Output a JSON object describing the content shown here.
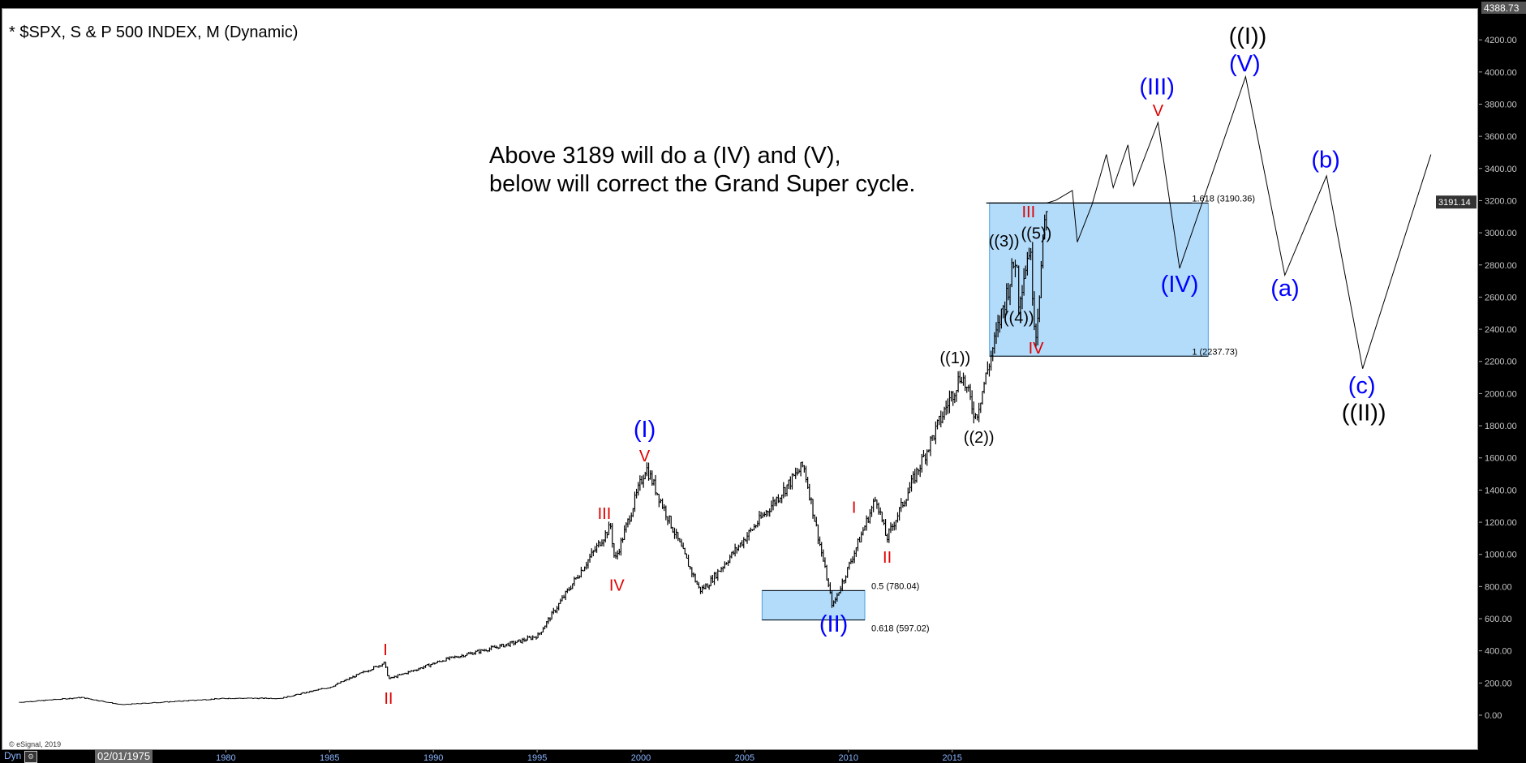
{
  "header": {
    "title": "* $SPX, S & P 500 INDEX, M (Dynamic)"
  },
  "annotation": {
    "line1": "Above 3189 will do a (IV) and (V),",
    "line2": "below will correct the Grand Super cycle."
  },
  "footer": {
    "copyright": "© eSignal, 2019",
    "dyn_label": "Dyn",
    "date_box": "02/01/1975"
  },
  "colors": {
    "blue_label": "#0000ff",
    "red_label": "#e00000",
    "black_label": "#000000",
    "box_fill": "#b3dcfb",
    "box_stroke": "#4a9fe0",
    "axis_bg": "#000000",
    "axis_text": "#c8c8c8"
  },
  "chart_data": {
    "type": "bar",
    "subtype": "ohlc-monthly",
    "title": "* $SPX, S & P 500 INDEX, M (Dynamic)",
    "ylim": [
      0,
      4388.73
    ],
    "y_ticks": [
      "0.00",
      "200.00",
      "400.00",
      "600.00",
      "800.00",
      "1000.00",
      "1200.00",
      "1400.00",
      "1600.00",
      "1800.00",
      "2000.00",
      "2200.00",
      "2400.00",
      "2600.00",
      "2800.00",
      "3000.00",
      "3200.00",
      "3400.00",
      "3600.00",
      "3800.00",
      "4000.00",
      "4200.00"
    ],
    "y_top_label": "4388.73",
    "last_price_label": "3191.14",
    "x_ticks": [
      "1980",
      "1985",
      "1990",
      "1995",
      "2000",
      "2005",
      "2010",
      "2015"
    ],
    "price_key_points": [
      [
        1970.0,
        85
      ],
      [
        1973.0,
        115
      ],
      [
        1974.9,
        70
      ],
      [
        1980.0,
        110
      ],
      [
        1982.6,
        110
      ],
      [
        1985.0,
        180
      ],
      [
        1987.6,
        330
      ],
      [
        1987.8,
        230
      ],
      [
        1990.5,
        350
      ],
      [
        1994.0,
        460
      ],
      [
        1995.0,
        500
      ],
      [
        1998.5,
        1180
      ],
      [
        1998.7,
        960
      ],
      [
        2000.2,
        1550
      ],
      [
        2002.8,
        780
      ],
      [
        2003.2,
        820
      ],
      [
        2007.8,
        1560
      ],
      [
        2009.2,
        680
      ],
      [
        2011.3,
        1360
      ],
      [
        2011.8,
        1100
      ],
      [
        2015.4,
        2130
      ],
      [
        2016.1,
        1860
      ],
      [
        2018.05,
        2870
      ],
      [
        2018.15,
        2580
      ],
      [
        2018.7,
        2930
      ],
      [
        2018.98,
        2350
      ],
      [
        2019.5,
        3190
      ]
    ],
    "projection": [
      [
        2019.5,
        3190
      ],
      [
        2019.95,
        3207
      ],
      [
        2020.75,
        3268
      ],
      [
        2020.99,
        2947
      ],
      [
        2021.69,
        3177
      ],
      [
        2022.39,
        3492
      ],
      [
        2022.72,
        3286
      ],
      [
        2023.43,
        3552
      ],
      [
        2023.71,
        3298
      ],
      [
        2024.88,
        3691
      ],
      [
        2025.92,
        2784
      ],
      [
        2029.1,
        3976
      ],
      [
        2030.99,
        2741
      ],
      [
        2033.0,
        3359
      ],
      [
        2034.74,
        2160
      ],
      [
        2038.03,
        3492
      ]
    ],
    "fib_boxes": [
      {
        "x": [
          2016.76,
          2027.3
        ],
        "y": [
          2237.73,
          3190.36
        ],
        "top_label": "1.618 (3190.36)",
        "bottom_label": "1 (2237.73)"
      },
      {
        "x": [
          2005.8,
          2010.75
        ],
        "y": [
          597.02,
          780.04
        ],
        "top_label": "0.5 (780.04)",
        "bottom_label": "0.618 (597.02)"
      }
    ],
    "hline": {
      "y": 3190.36,
      "x": [
        2016.6,
        2026.5
      ]
    },
    "wave_labels": [
      {
        "text": "I",
        "color": "red",
        "x": 1987.65,
        "y": 405,
        "size": "s"
      },
      {
        "text": "II",
        "color": "red",
        "x": 1987.8,
        "y": 103,
        "size": "s"
      },
      {
        "text": "III",
        "color": "red",
        "x": 1998.2,
        "y": 1253,
        "size": "s"
      },
      {
        "text": "IV",
        "color": "red",
        "x": 1998.8,
        "y": 805,
        "size": "s"
      },
      {
        "text": "V",
        "color": "red",
        "x": 2000.14,
        "y": 1610,
        "size": "s"
      },
      {
        "text": "(I)",
        "color": "blue",
        "x": 2000.14,
        "y": 1773,
        "size": "l"
      },
      {
        "text": "(II)",
        "color": "blue",
        "x": 2009.25,
        "y": 563,
        "size": "l"
      },
      {
        "text": "I",
        "color": "red",
        "x": 2010.23,
        "y": 1289,
        "size": "s"
      },
      {
        "text": "II",
        "color": "red",
        "x": 2011.83,
        "y": 980,
        "size": "s"
      },
      {
        "text": "((1))",
        "color": "black",
        "x": 2015.1,
        "y": 2221,
        "size": "m"
      },
      {
        "text": "((2))",
        "color": "black",
        "x": 2016.25,
        "y": 1725,
        "size": "m"
      },
      {
        "text": "((3))",
        "color": "black",
        "x": 2017.46,
        "y": 2947,
        "size": "m"
      },
      {
        "text": "((4))",
        "color": "black",
        "x": 2018.17,
        "y": 2469,
        "size": "m"
      },
      {
        "text": "((5))",
        "color": "black",
        "x": 2018.78,
        "y": 2995,
        "size": "m"
      },
      {
        "text": "III",
        "color": "red",
        "x": 2018.64,
        "y": 3128,
        "size": "s"
      },
      {
        "text": "IV",
        "color": "red",
        "x": 2019.0,
        "y": 2281,
        "size": "s"
      },
      {
        "text": "(III)",
        "color": "blue",
        "x": 2024.83,
        "y": 3903,
        "size": "l"
      },
      {
        "text": "V",
        "color": "red",
        "x": 2024.88,
        "y": 3758,
        "size": "s"
      },
      {
        "text": "(IV)",
        "color": "blue",
        "x": 2025.92,
        "y": 2675,
        "size": "l"
      },
      {
        "text": "((I))",
        "color": "black",
        "x": 2029.2,
        "y": 4218,
        "size": "l"
      },
      {
        "text": "(V)",
        "color": "blue",
        "x": 2029.06,
        "y": 4061,
        "size": "l"
      },
      {
        "text": "(a)",
        "color": "blue",
        "x": 2031.0,
        "y": 2650,
        "size": "l"
      },
      {
        "text": "(b)",
        "color": "blue",
        "x": 2032.96,
        "y": 3450,
        "size": "l"
      },
      {
        "text": "(c)",
        "color": "blue",
        "x": 2034.7,
        "y": 2045,
        "size": "l"
      },
      {
        "text": "((II))",
        "color": "black",
        "x": 2034.8,
        "y": 1876,
        "size": "l"
      }
    ]
  }
}
